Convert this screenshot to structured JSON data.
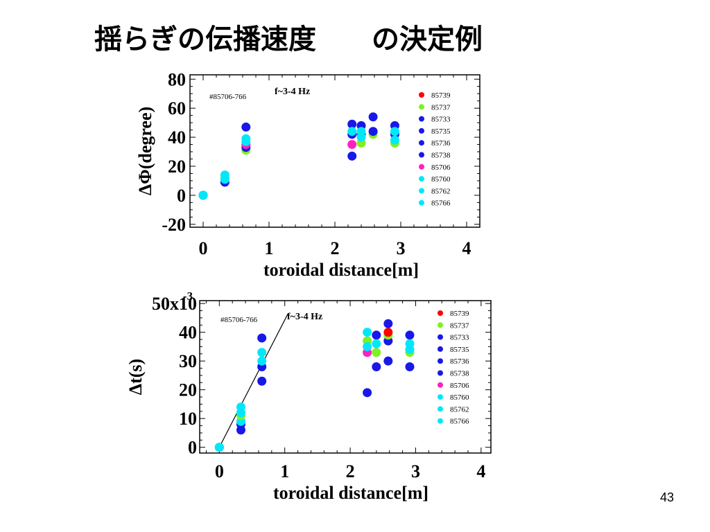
{
  "title": "揺らぎの伝播速度　　の決定例",
  "page_number": "43",
  "legend_ids": [
    "85739",
    "85737",
    "85733",
    "85735",
    "85736",
    "85738",
    "85706",
    "85760",
    "85762",
    "85766"
  ],
  "series_colors": {
    "85739": "#ff0000",
    "85737": "#80f020",
    "85733": "#1818e8",
    "85735": "#1818e8",
    "85736": "#1818e8",
    "85738": "#1818e8",
    "85706": "#ff20c0",
    "85760": "#00e8f8",
    "85762": "#00e8f8",
    "85766": "#00e8f8"
  },
  "chart_data": [
    {
      "type": "scatter",
      "shot_label": "#85706-766",
      "freq_label": "f~3-4 Hz",
      "xlabel": "toroidal distance[m]",
      "ylabel": "ΔΦ(degree)",
      "xlim": [
        -0.2,
        4.2
      ],
      "ylim": [
        -22,
        83
      ],
      "xticks": [
        "0",
        "1",
        "2",
        "3",
        "4"
      ],
      "yticks": [
        "80",
        "60",
        "40",
        "20",
        "0",
        "-20"
      ],
      "ytick_values": [
        80,
        60,
        40,
        20,
        0,
        -20
      ],
      "xtick_values": [
        0,
        1,
        2,
        3,
        4
      ],
      "points": [
        {
          "s": "85733",
          "x": 0.0,
          "y": 0
        },
        {
          "s": "85766",
          "x": 0.0,
          "y": 0
        },
        {
          "s": "85733",
          "x": 0.33,
          "y": 9
        },
        {
          "s": "85737",
          "x": 0.33,
          "y": 12
        },
        {
          "s": "85766",
          "x": 0.33,
          "y": 14
        },
        {
          "s": "85760",
          "x": 0.33,
          "y": 11
        },
        {
          "s": "85733",
          "x": 0.65,
          "y": 47
        },
        {
          "s": "85737",
          "x": 0.65,
          "y": 31
        },
        {
          "s": "85733",
          "x": 0.65,
          "y": 33
        },
        {
          "s": "85706",
          "x": 0.65,
          "y": 35
        },
        {
          "s": "85760",
          "x": 0.65,
          "y": 37
        },
        {
          "s": "85766",
          "x": 0.65,
          "y": 39
        },
        {
          "s": "85733",
          "x": 2.26,
          "y": 27
        },
        {
          "s": "85706",
          "x": 2.26,
          "y": 35
        },
        {
          "s": "85733",
          "x": 2.26,
          "y": 42
        },
        {
          "s": "85733",
          "x": 2.26,
          "y": 49
        },
        {
          "s": "85766",
          "x": 2.26,
          "y": 44
        },
        {
          "s": "85737",
          "x": 2.4,
          "y": 36
        },
        {
          "s": "85733",
          "x": 2.4,
          "y": 42
        },
        {
          "s": "85733",
          "x": 2.4,
          "y": 48
        },
        {
          "s": "85760",
          "x": 2.4,
          "y": 40
        },
        {
          "s": "85766",
          "x": 2.4,
          "y": 44
        },
        {
          "s": "85737",
          "x": 2.58,
          "y": 42
        },
        {
          "s": "85733",
          "x": 2.58,
          "y": 44
        },
        {
          "s": "85733",
          "x": 2.58,
          "y": 54
        },
        {
          "s": "85737",
          "x": 2.91,
          "y": 36
        },
        {
          "s": "85733",
          "x": 2.91,
          "y": 48
        },
        {
          "s": "85733",
          "x": 2.91,
          "y": 42
        },
        {
          "s": "85760",
          "x": 2.91,
          "y": 38
        },
        {
          "s": "85766",
          "x": 2.91,
          "y": 44
        }
      ]
    },
    {
      "type": "scatter",
      "shot_label": "#85706-766",
      "freq_label": "f~3-4 Hz",
      "xlabel": "toroidal distance[m]",
      "ylabel": "Δt(s)",
      "y_exponent": "-3",
      "xlim": [
        -0.3,
        4.15
      ],
      "ylim": [
        -2,
        51
      ],
      "xticks": [
        "0",
        "1",
        "2",
        "3",
        "4"
      ],
      "yticks": [
        "50x10",
        "40",
        "30",
        "20",
        "10",
        "0"
      ],
      "ytick_values": [
        50,
        40,
        30,
        20,
        10,
        0
      ],
      "xtick_values": [
        0,
        1,
        2,
        3,
        4
      ],
      "fit_line": {
        "x0": 0.0,
        "y0": 0,
        "x1": 1.05,
        "y1": 46.5
      },
      "points": [
        {
          "s": "85733",
          "x": 0.0,
          "y": 0
        },
        {
          "s": "85766",
          "x": 0.0,
          "y": 0
        },
        {
          "s": "85733",
          "x": 0.33,
          "y": 6
        },
        {
          "s": "85733",
          "x": 0.33,
          "y": 8
        },
        {
          "s": "85760",
          "x": 0.33,
          "y": 9
        },
        {
          "s": "85737",
          "x": 0.33,
          "y": 11
        },
        {
          "s": "85760",
          "x": 0.33,
          "y": 12
        },
        {
          "s": "85766",
          "x": 0.33,
          "y": 14
        },
        {
          "s": "85733",
          "x": 0.65,
          "y": 23
        },
        {
          "s": "85733",
          "x": 0.65,
          "y": 28
        },
        {
          "s": "85733",
          "x": 0.65,
          "y": 38
        },
        {
          "s": "85760",
          "x": 0.65,
          "y": 30
        },
        {
          "s": "85766",
          "x": 0.65,
          "y": 33
        },
        {
          "s": "85733",
          "x": 2.26,
          "y": 19
        },
        {
          "s": "85706",
          "x": 2.26,
          "y": 33
        },
        {
          "s": "85737",
          "x": 2.26,
          "y": 37
        },
        {
          "s": "85760",
          "x": 2.26,
          "y": 35
        },
        {
          "s": "85766",
          "x": 2.26,
          "y": 40
        },
        {
          "s": "85733",
          "x": 2.4,
          "y": 28
        },
        {
          "s": "85737",
          "x": 2.4,
          "y": 33
        },
        {
          "s": "85733",
          "x": 2.4,
          "y": 39
        },
        {
          "s": "85760",
          "x": 2.4,
          "y": 36
        },
        {
          "s": "85733",
          "x": 2.58,
          "y": 30
        },
        {
          "s": "85733",
          "x": 2.58,
          "y": 37
        },
        {
          "s": "85737",
          "x": 2.58,
          "y": 39
        },
        {
          "s": "85739",
          "x": 2.58,
          "y": 40
        },
        {
          "s": "85733",
          "x": 2.58,
          "y": 43
        },
        {
          "s": "85733",
          "x": 2.91,
          "y": 28
        },
        {
          "s": "85737",
          "x": 2.91,
          "y": 33
        },
        {
          "s": "85733",
          "x": 2.91,
          "y": 39
        },
        {
          "s": "85760",
          "x": 2.91,
          "y": 34
        },
        {
          "s": "85766",
          "x": 2.91,
          "y": 36
        }
      ]
    }
  ]
}
